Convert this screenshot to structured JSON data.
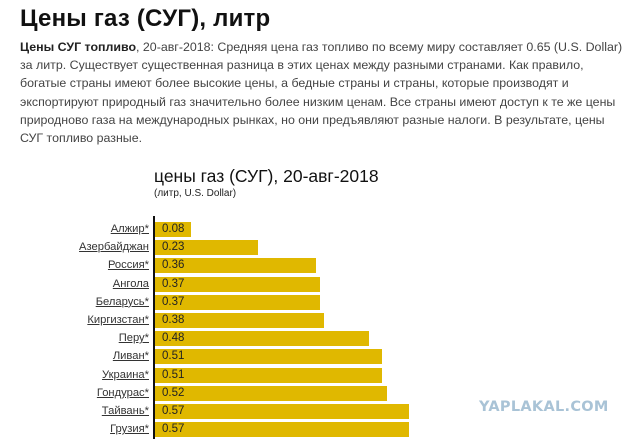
{
  "page": {
    "title": "Цены газ (СУГ), литр",
    "intro_bold": "Цены СУГ топливо",
    "intro_text": ", 20-авг-2018: Средняя цена газ топливо по всему миру составляет 0.65 (U.S. Dollar) за литр. Существует существенная разница в этих ценах между разными странами. Как правило, богатые страны имеют более высокие цены, а бедные страны и страны, которые производят и экспортируют природный газ значительно более низким ценам. Все страны имеют доступ к те же цены природново газа на международных рынках, но они предъявляют разные налоги. В результате, цены СУГ топливо разные."
  },
  "watermark": "YAPLAKAL.COM",
  "colors": {
    "bar": "#e0b800",
    "axis": "#111111",
    "watermark": "#a9c3d6"
  },
  "chart_data": {
    "type": "bar",
    "orientation": "horizontal",
    "title": "цены газ (СУГ), 20-авг-2018",
    "subtitle": "(литр, U.S. Dollar)",
    "xlabel": "",
    "ylabel": "",
    "grid": false,
    "legend": null,
    "categories": [
      "Алжир*",
      "Азербайджан",
      "Россия*",
      "Ангола",
      "Беларусь*",
      "Киргизстан*",
      "Перу*",
      "Ливан*",
      "Украина*",
      "Гондурас*",
      "Тайвань*",
      "Грузия*"
    ],
    "values": [
      0.08,
      0.23,
      0.36,
      0.37,
      0.37,
      0.38,
      0.48,
      0.51,
      0.51,
      0.52,
      0.57,
      0.57
    ],
    "value_labels": [
      "0.08",
      "0.23",
      "0.36",
      "0.37",
      "0.37",
      "0.38",
      "0.48",
      "0.51",
      "0.51",
      "0.52",
      "0.57",
      "0.57"
    ],
    "xlim": [
      0,
      1.08
    ]
  }
}
